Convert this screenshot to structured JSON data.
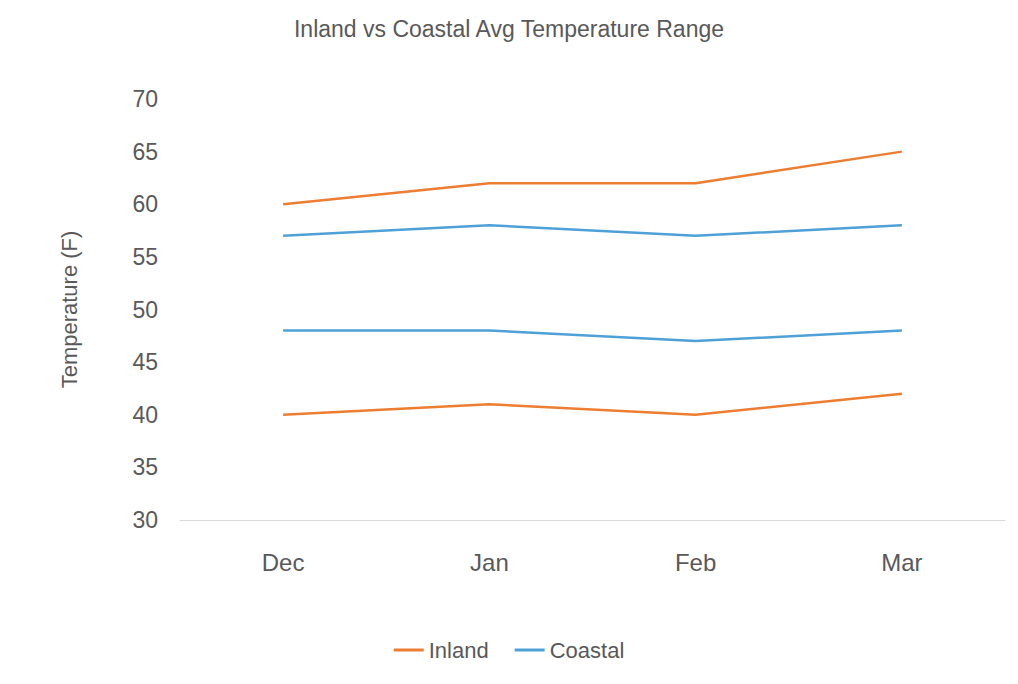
{
  "chart_data": {
    "type": "line",
    "title": "Inland vs Coastal Avg Temperature Range",
    "y_label": "Temperature (F)",
    "categories": [
      "Dec",
      "Jan",
      "Feb",
      "Mar"
    ],
    "series": [
      {
        "name": "Inland",
        "color": "#ed7d31",
        "values": [
          60,
          62,
          62,
          65
        ]
      },
      {
        "name": "Coastal",
        "color": "#4ea1d6",
        "values": [
          57,
          58,
          57,
          58
        ]
      },
      {
        "name": "Coastal",
        "color": "#4ea1d6",
        "values": [
          48,
          48,
          47,
          48
        ]
      },
      {
        "name": "Inland",
        "color": "#ed7d31",
        "values": [
          40,
          41,
          40,
          42
        ]
      }
    ],
    "ylim": [
      30,
      70
    ],
    "yticks": [
      30,
      35,
      40,
      45,
      50,
      55,
      60,
      65,
      70
    ],
    "grid": false,
    "legend": "bottom"
  }
}
